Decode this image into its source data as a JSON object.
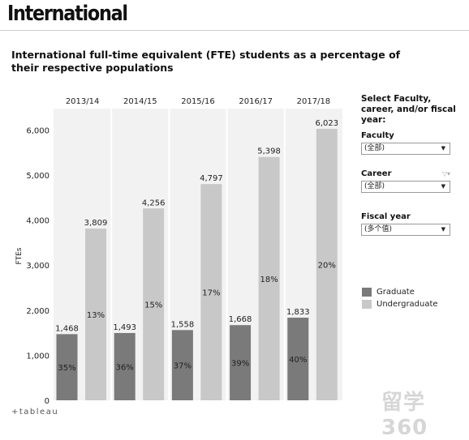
{
  "page": {
    "heading": "International"
  },
  "footer": {
    "brand": "+tableau"
  },
  "watermark": "留学360",
  "filters": {
    "heading": "Select Faculty, career, and/or fiscal year:",
    "faculty": {
      "label": "Faculty",
      "value": "(全部)"
    },
    "career": {
      "label": "Career",
      "value": "(全部)"
    },
    "fiscal_year": {
      "label": "Fiscal year",
      "value": "(多个值)"
    }
  },
  "colors": {
    "graduate": "#7a7a7a",
    "undergraduate": "#c8c8c8",
    "panel_bg": "#f2f2f2",
    "divider": "#ffffff"
  },
  "chart_data": {
    "type": "bar",
    "title": "International full-time equivalent (FTE) students as a percentage of their respective populations",
    "ylabel": "FTEs",
    "xlabel": "",
    "categories": [
      "2013/14",
      "2014/15",
      "2015/16",
      "2016/17",
      "2017/18"
    ],
    "yticks": [
      "0",
      "1,000",
      "2,000",
      "3,000",
      "4,000",
      "5,000",
      "6,000"
    ],
    "ylim": [
      0,
      6400
    ],
    "grid": false,
    "legend_position": "right",
    "series": [
      {
        "name": "Graduate",
        "values": [
          1468,
          1493,
          1558,
          1668,
          1833
        ],
        "value_labels": [
          "1,468",
          "1,493",
          "1,558",
          "1,668",
          "1,833"
        ],
        "pct_labels": [
          "35%",
          "36%",
          "37%",
          "39%",
          "40%"
        ]
      },
      {
        "name": "Undergraduate",
        "values": [
          3809,
          4256,
          4797,
          5398,
          6023
        ],
        "value_labels": [
          "3,809",
          "4,256",
          "4,797",
          "5,398",
          "6,023"
        ],
        "pct_labels": [
          "13%",
          "15%",
          "17%",
          "18%",
          "20%"
        ]
      }
    ]
  }
}
